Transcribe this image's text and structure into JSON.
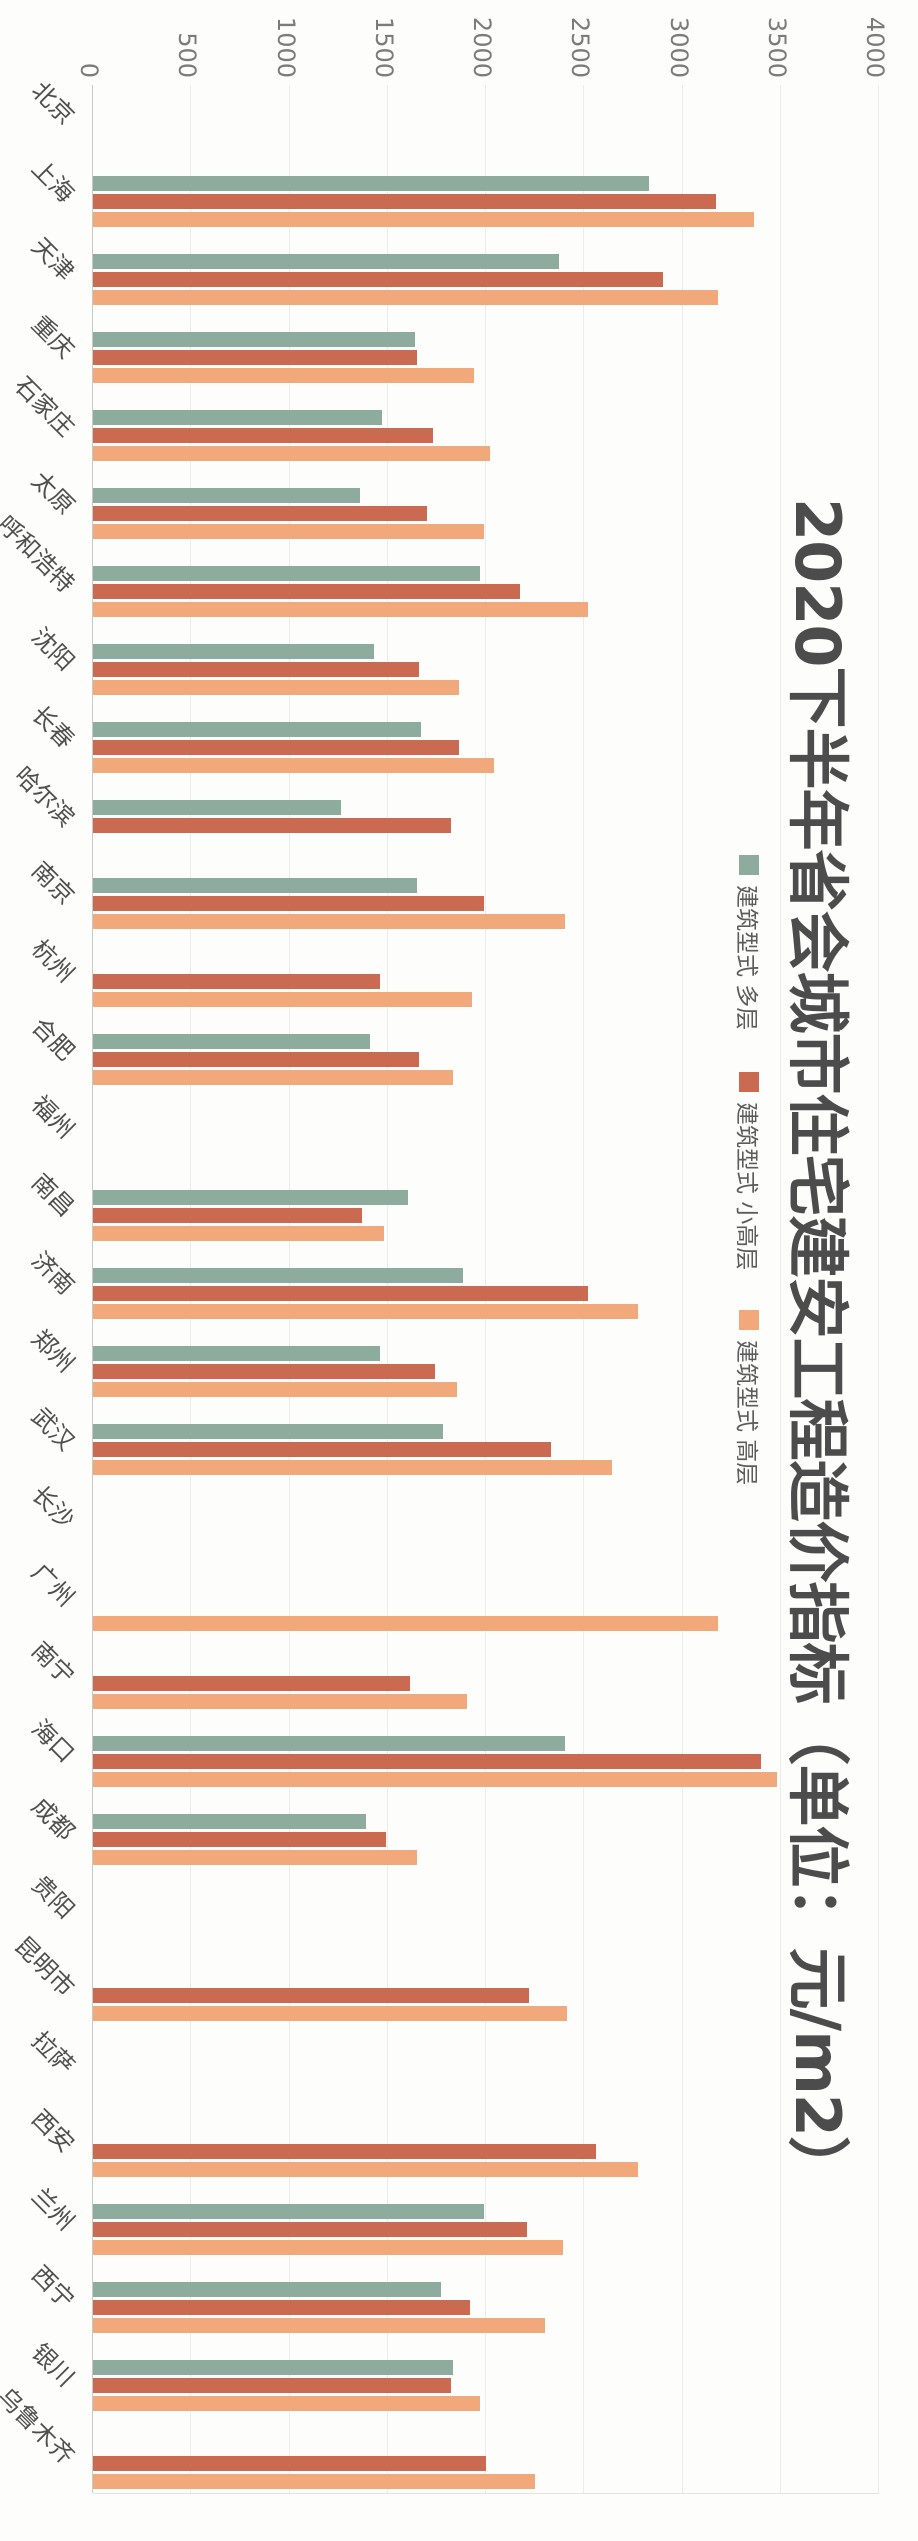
{
  "title": "2020下半年省会城市住宅建安工程造价指标（单位：元/m2）",
  "legend": {
    "position": "upper-middle-of-plot",
    "items": [
      {
        "label": "建筑型式 多层",
        "color": "#8dac9d"
      },
      {
        "label": "建筑型式 小高层",
        "color": "#ca6a50"
      },
      {
        "label": "建筑型式 高层",
        "color": "#f1a87b"
      }
    ]
  },
  "value_axis": {
    "ticks": [
      0,
      500,
      1000,
      1500,
      2000,
      2500,
      3000,
      3500,
      4000
    ],
    "max": 4000
  },
  "chart_data": {
    "type": "bar",
    "presentation": "grouped vertical columns, whole figure rotated 90° clockwise",
    "title": "2020下半年省会城市住宅建安工程造价指标（单位：元/m2）",
    "unit": "元/m2",
    "categories": [
      "北京",
      "上海",
      "天津",
      "重庆",
      "石家庄",
      "太原",
      "呼和浩特",
      "沈阳",
      "长春",
      "哈尔滨",
      "南京",
      "杭州",
      "合肥",
      "福州",
      "南昌",
      "济南",
      "郑州",
      "武汉",
      "长沙",
      "广州",
      "南宁",
      "海口",
      "成都",
      "贵阳",
      "昆明市",
      "拉萨",
      "西安",
      "兰州",
      "西宁",
      "银川",
      "乌鲁木齐"
    ],
    "series": [
      {
        "name": "建筑型式 多层",
        "color": "#8dac9d",
        "values": [
          null,
          2830,
          2370,
          1640,
          1470,
          1360,
          1970,
          1430,
          1670,
          1260,
          1650,
          null,
          1410,
          null,
          1600,
          1880,
          1460,
          1780,
          null,
          null,
          null,
          2400,
          1390,
          null,
          null,
          null,
          null,
          1990,
          1770,
          1830,
          null
        ]
      },
      {
        "name": "建筑型式 小高层",
        "color": "#ca6a50",
        "values": [
          null,
          3170,
          2900,
          1650,
          1730,
          1700,
          2170,
          1660,
          1860,
          1820,
          1990,
          1460,
          1660,
          null,
          1370,
          2520,
          1740,
          2330,
          null,
          null,
          1610,
          3400,
          1490,
          null,
          2220,
          null,
          2560,
          2210,
          1920,
          1820,
          2000
        ]
      },
      {
        "name": "建筑型式 高层",
        "color": "#f1a87b",
        "values": [
          null,
          3360,
          3180,
          1940,
          2020,
          1990,
          2520,
          1860,
          2040,
          null,
          2400,
          1930,
          1830,
          null,
          1480,
          2770,
          1850,
          2640,
          null,
          3180,
          1900,
          3480,
          1650,
          null,
          2410,
          null,
          2770,
          2390,
          2300,
          1970,
          2250
        ]
      }
    ],
    "ylim": [
      0,
      4000
    ],
    "tick_interval": 500,
    "grid": true,
    "legend_position": "inside plot, upper middle"
  },
  "colors": {
    "background": "#fdfdfb",
    "title_text": "#4c4c4c",
    "tick_text": "#7b7b7b",
    "category_text": "#4f4f4f",
    "gridline": "#ececea",
    "axis_line": "#c9c9c6"
  }
}
